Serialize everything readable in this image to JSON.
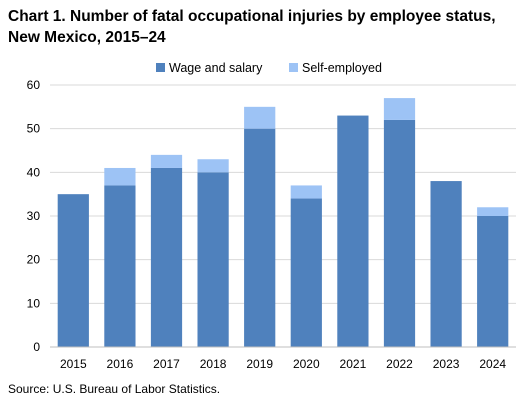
{
  "title_line1": "Chart 1. Number of fatal occupational injuries by employee status,",
  "title_line2": "New Mexico, 2015–24",
  "source": "Source:  U.S. Bureau  of Labor Statistics.",
  "colors": {
    "wage": "#4f81bd",
    "self": "#9dc3f5",
    "grid": "#d9d9d9",
    "axis": "#bfbfbf"
  },
  "chart_data": {
    "type": "bar",
    "stacked": true,
    "categories": [
      "2015",
      "2016",
      "2017",
      "2018",
      "2019",
      "2020",
      "2021",
      "2022",
      "2023",
      "2024"
    ],
    "series": [
      {
        "name": "Wage and salary",
        "values": [
          35,
          37,
          41,
          40,
          50,
          34,
          53,
          52,
          38,
          30
        ]
      },
      {
        "name": "Self-employed",
        "values": [
          0,
          4,
          3,
          3,
          5,
          3,
          0,
          5,
          0,
          2
        ]
      }
    ],
    "yticks": [
      "0",
      "10",
      "20",
      "30",
      "40",
      "50",
      "60"
    ],
    "ylim": [
      0,
      60
    ],
    "grid": true,
    "legend": "top"
  }
}
